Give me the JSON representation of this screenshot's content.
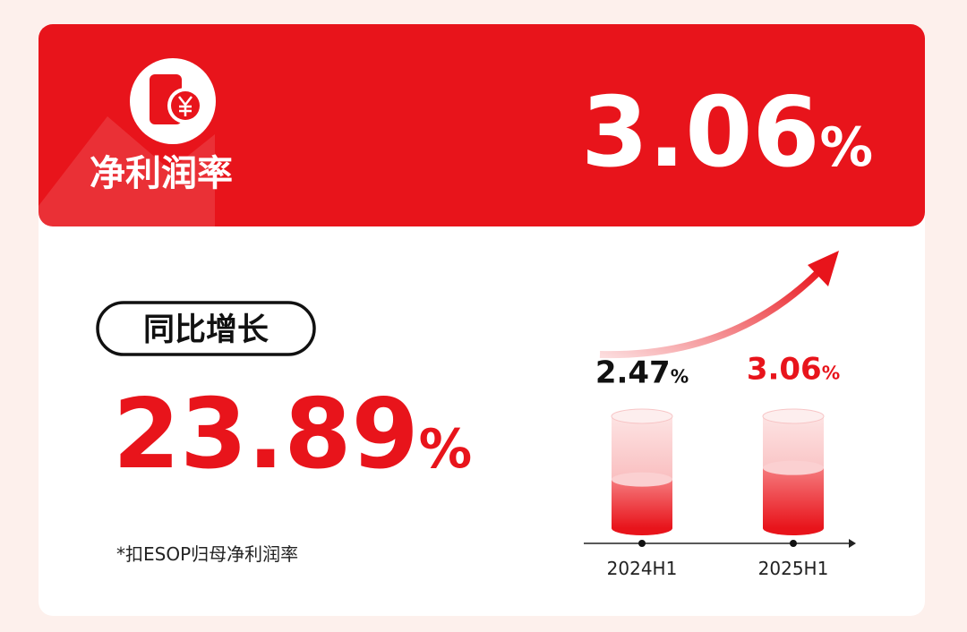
{
  "header": {
    "title": "净利润率",
    "value": "3.06%"
  },
  "growth": {
    "label": "同比增长",
    "value": "23.89%"
  },
  "note": "*扣ESOP归母净利润率",
  "chart_data": {
    "type": "bar",
    "categories": [
      "2024H1",
      "2025H1"
    ],
    "values": [
      2.47,
      3.06
    ],
    "value_labels": [
      "2.47%",
      "3.06%"
    ],
    "colors": [
      "#111111",
      "#e8141b"
    ]
  }
}
